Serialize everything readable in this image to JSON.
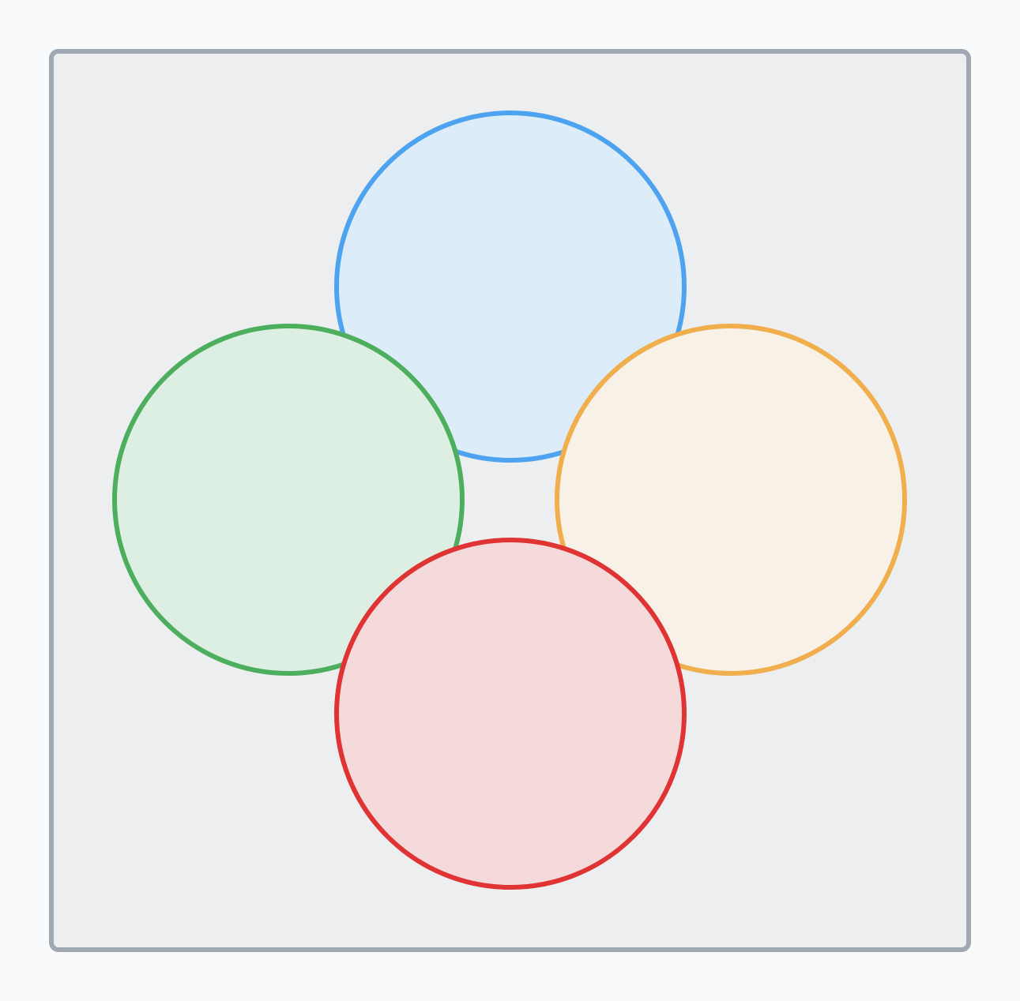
{
  "colors": {
    "page_background": "#f8fafc",
    "frame_fill": "#eceef0",
    "frame_stroke": "#a0a8b3"
  },
  "circles": [
    {
      "name": "top-circle",
      "stroke": "#4da3f0",
      "fill": "#dcecf8"
    },
    {
      "name": "right-circle",
      "stroke": "#f0ae4d",
      "fill": "#f8f1e8"
    },
    {
      "name": "left-circle",
      "stroke": "#4daf5e",
      "fill": "#dcefe2"
    },
    {
      "name": "bottom-circle",
      "stroke": "#e03434",
      "fill": "#f5dadc"
    }
  ]
}
